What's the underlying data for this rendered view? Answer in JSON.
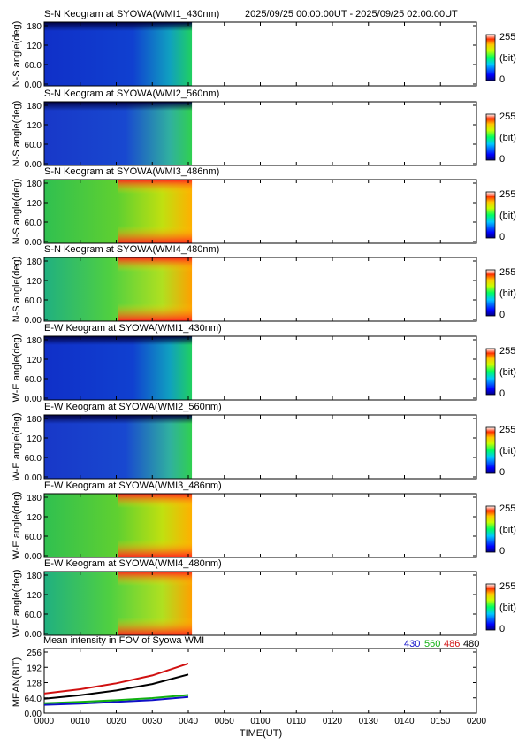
{
  "header": {
    "range_text": "2025/09/25 00:00:00UT - 2025/09/25 02:00:00UT"
  },
  "colorbar": {
    "max_label": "255",
    "unit_label": "(bit)",
    "min_label": "0"
  },
  "colors": {
    "color_430": "#1010c8",
    "color_560": "#10b010",
    "color_486": "#d01010",
    "color_480": "#000000"
  },
  "panels": [
    {
      "title": "S-N Keogram at SYOWA(WMI1_430nm)",
      "ylabel": "N-S angle(deg)",
      "style": "blue"
    },
    {
      "title": "S-N Keogram at SYOWA(WMI2_560nm)",
      "ylabel": "N-S angle(deg)",
      "style": "blue2"
    },
    {
      "title": "S-N Keogram at SYOWA(WMI3_486nm)",
      "ylabel": "N-S angle(deg)",
      "style": "bright"
    },
    {
      "title": "S-N Keogram at SYOWA(WMI4_480nm)",
      "ylabel": "N-S angle(deg)",
      "style": "bright2"
    },
    {
      "title": "E-W Keogram at SYOWA(WMI1_430nm)",
      "ylabel": "W-E angle(deg)",
      "style": "blue"
    },
    {
      "title": "E-W Keogram at SYOWA(WMI2_560nm)",
      "ylabel": "W-E angle(deg)",
      "style": "blue2"
    },
    {
      "title": "E-W Keogram at SYOWA(WMI3_486nm)",
      "ylabel": "W-E angle(deg)",
      "style": "bright"
    },
    {
      "title": "E-W Keogram at SYOWA(WMI4_480nm)",
      "ylabel": "W-E angle(deg)",
      "style": "bright2"
    }
  ],
  "keogram_yticks": [
    "0.00",
    "60.0",
    "120",
    "180"
  ],
  "chart_data": {
    "type": "line",
    "title": "Mean intensity in FOV of Syowa WMI",
    "xlabel": "TIME(UT)",
    "ylabel": "MEAN(BIT)",
    "xticks": [
      "0000",
      "0010",
      "0020",
      "0030",
      "0040",
      "0050",
      "0100",
      "0110",
      "0120",
      "0130",
      "0140",
      "0150",
      "0200"
    ],
    "xlim": [
      0,
      120
    ],
    "ylim": [
      0,
      256
    ],
    "yticks": [
      "0.00",
      "64.0",
      "128",
      "192",
      "256"
    ],
    "x": [
      0,
      10,
      20,
      30,
      40
    ],
    "series": [
      {
        "name": "430",
        "color": "#1010c8",
        "values": [
          35,
          40,
          47,
          55,
          68
        ]
      },
      {
        "name": "560",
        "color": "#10b010",
        "values": [
          42,
          47,
          54,
          63,
          76
        ]
      },
      {
        "name": "486",
        "color": "#d01010",
        "values": [
          82,
          100,
          125,
          158,
          208
        ]
      },
      {
        "name": "480",
        "color": "#000000",
        "values": [
          60,
          75,
          95,
          122,
          162
        ]
      }
    ],
    "keogram_time_extent": [
      0,
      41
    ]
  }
}
